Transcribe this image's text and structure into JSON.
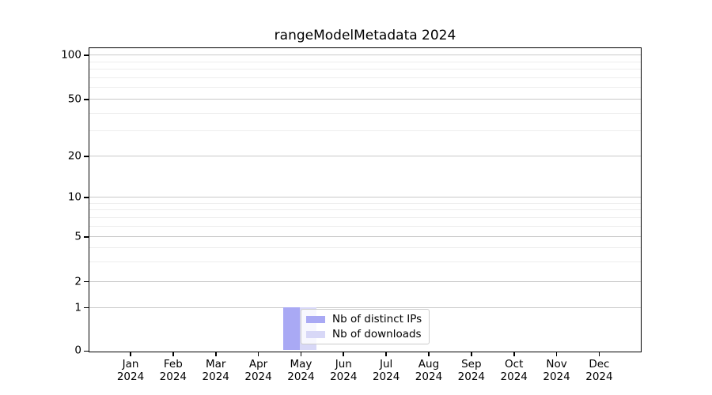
{
  "chart_data": {
    "type": "bar",
    "title": "rangeModelMetadata 2024",
    "x_axis": {
      "categories": [
        "Jan",
        "Feb",
        "Mar",
        "Apr",
        "May",
        "Jun",
        "Jul",
        "Aug",
        "Sep",
        "Oct",
        "Nov",
        "Dec"
      ],
      "year_label": "2024"
    },
    "y_axis": {
      "scale": "log-like (0,1 linear then logarithmic)",
      "major_ticks": [
        0,
        1,
        2,
        5,
        10,
        20,
        50,
        100
      ],
      "minor_ticks": [
        3,
        4,
        6,
        7,
        8,
        9,
        30,
        40,
        60,
        70,
        80,
        90
      ],
      "range": [
        0,
        100
      ],
      "grid": true
    },
    "series": [
      {
        "name": "Nb of distinct IPs",
        "color": "#a9a9f4",
        "values": [
          0,
          0,
          0,
          0,
          1,
          0,
          0,
          0,
          0,
          0,
          0,
          0
        ]
      },
      {
        "name": "Nb of downloads",
        "color": "#d8d8f7",
        "values": [
          0,
          0,
          0,
          0,
          1,
          0,
          0,
          0,
          0,
          0,
          0,
          0
        ]
      }
    ],
    "legend": {
      "position": "inside-lower-center"
    },
    "colors": {
      "major_grid": "#c9c9c9",
      "minor_grid": "#ededed",
      "spine": "#000000"
    }
  }
}
